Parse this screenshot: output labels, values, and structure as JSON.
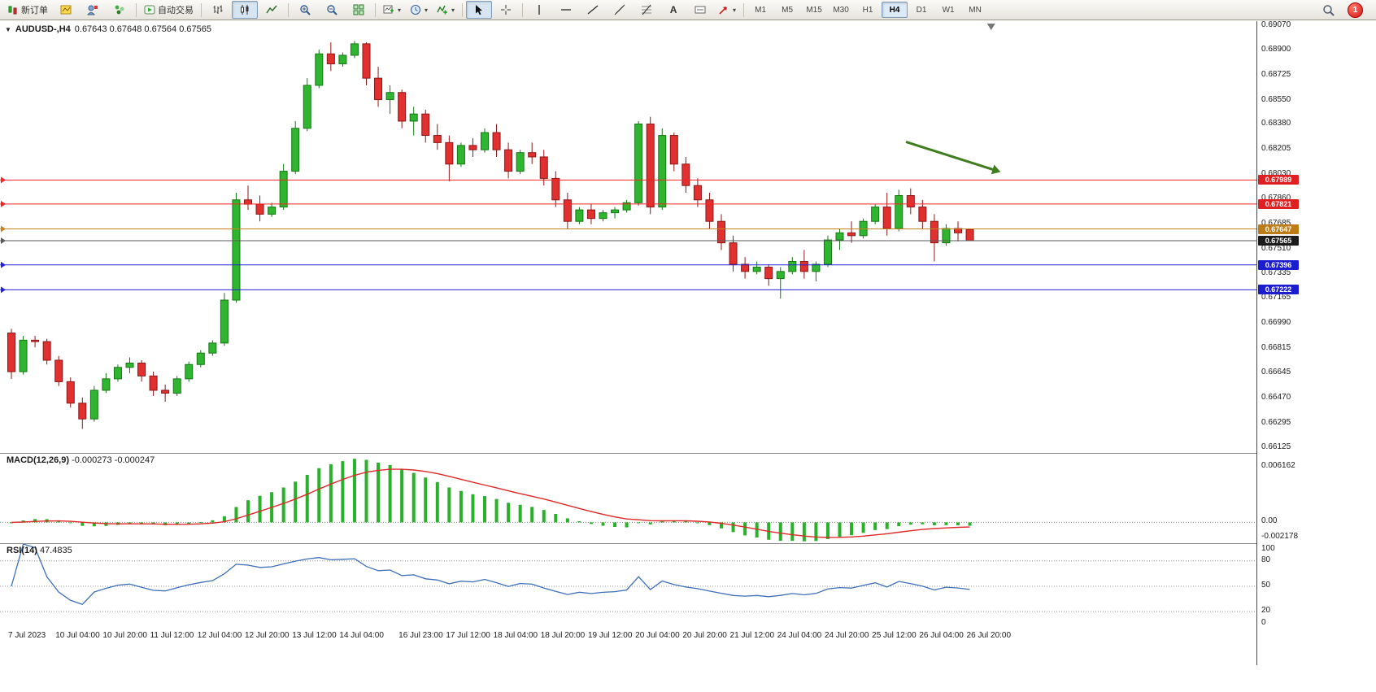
{
  "toolbar": {
    "new_order_label": "新订单",
    "auto_trading_label": "自动交易",
    "text_tool_glyph": "A",
    "timeframes": [
      "M1",
      "M5",
      "M15",
      "M30",
      "H1",
      "H4",
      "D1",
      "W1",
      "MN"
    ],
    "active_timeframe": "H4",
    "notification_count": "1",
    "icon_names": [
      "new-order-icon",
      "charts-grid-icon",
      "profile-icon",
      "navigator-icon",
      "auto-trading-icon",
      "bar-chart-icon",
      "candlestick-icon",
      "line-chart-icon",
      "zoom-in-icon",
      "zoom-out-icon",
      "tile-windows-icon",
      "new-chart-icon",
      "period-clock-icon",
      "indicators-icon",
      "cursor-icon",
      "crosshair-icon",
      "vertical-line-icon",
      "horizontal-line-icon",
      "trendline-icon",
      "channel-icon",
      "fibonacci-icon",
      "text-icon",
      "label-icon",
      "arrows-icon",
      "search-icon"
    ]
  },
  "chart": {
    "symbol_label": "AUDUSD-,H4",
    "ohlc_label": "0.67643 0.67648 0.67564 0.67565",
    "price_scale_labels": [
      "0.69070",
      "0.68900",
      "0.68725",
      "0.68550",
      "0.68380",
      "0.68205",
      "0.68030",
      "0.67860",
      "0.67685",
      "0.67510",
      "0.67335",
      "0.67165",
      "0.66990",
      "0.66815",
      "0.66645",
      "0.66470",
      "0.66295",
      "0.66125"
    ],
    "hlines": [
      {
        "label": "0.67989",
        "price": 0.67989,
        "color": "#ff2020",
        "box_color": "#e02020"
      },
      {
        "label": "0.67821",
        "price": 0.67821,
        "color": "#ff2020",
        "box_color": "#e02020"
      },
      {
        "label": "0.67647",
        "price": 0.67647,
        "color": "#c8831e",
        "box_color": "#bd7c16"
      },
      {
        "label": "0.67565",
        "price": 0.67565,
        "color": "#5a5a5a",
        "box_color": "#1c1c1c"
      },
      {
        "label": "0.67396",
        "price": 0.67396,
        "color": "#2222e0",
        "box_color": "#1d1dd0"
      },
      {
        "label": "0.67222",
        "price": 0.67222,
        "color": "#2222e0",
        "box_color": "#1d1dd0"
      }
    ],
    "colors": {
      "up": "#2fb52f",
      "up_stroke": "#157815",
      "down": "#e03030",
      "down_stroke": "#8e1616"
    }
  },
  "chart_data": {
    "type": "candlestick",
    "symbol": "AUDUSD",
    "timeframe": "H4",
    "ylim": [
      0.66125,
      0.6907
    ],
    "ohlc": [
      [
        0.6692,
        0.6695,
        0.666,
        0.6665
      ],
      [
        0.6665,
        0.669,
        0.6663,
        0.6687
      ],
      [
        0.6687,
        0.669,
        0.6682,
        0.6686
      ],
      [
        0.6686,
        0.6688,
        0.667,
        0.6673
      ],
      [
        0.6673,
        0.6676,
        0.6655,
        0.6658
      ],
      [
        0.6658,
        0.6661,
        0.664,
        0.6643
      ],
      [
        0.6643,
        0.6647,
        0.6625,
        0.6632
      ],
      [
        0.6632,
        0.6655,
        0.663,
        0.6652
      ],
      [
        0.6652,
        0.6664,
        0.665,
        0.666
      ],
      [
        0.666,
        0.667,
        0.6658,
        0.6668
      ],
      [
        0.6668,
        0.6675,
        0.6664,
        0.6671
      ],
      [
        0.6671,
        0.6673,
        0.6658,
        0.6662
      ],
      [
        0.6662,
        0.6665,
        0.6648,
        0.6652
      ],
      [
        0.6652,
        0.6656,
        0.6644,
        0.665
      ],
      [
        0.665,
        0.6662,
        0.6648,
        0.666
      ],
      [
        0.666,
        0.6672,
        0.6658,
        0.667
      ],
      [
        0.667,
        0.668,
        0.6668,
        0.6678
      ],
      [
        0.6678,
        0.6687,
        0.6676,
        0.6685
      ],
      [
        0.6685,
        0.672,
        0.6683,
        0.6715
      ],
      [
        0.6715,
        0.679,
        0.6713,
        0.6785
      ],
      [
        0.6785,
        0.6795,
        0.6778,
        0.6782
      ],
      [
        0.6782,
        0.6788,
        0.677,
        0.6775
      ],
      [
        0.6775,
        0.6783,
        0.6773,
        0.678
      ],
      [
        0.678,
        0.681,
        0.6778,
        0.6805
      ],
      [
        0.6805,
        0.684,
        0.6803,
        0.6835
      ],
      [
        0.6835,
        0.687,
        0.6833,
        0.6865
      ],
      [
        0.6865,
        0.689,
        0.6863,
        0.6887
      ],
      [
        0.6887,
        0.6895,
        0.6875,
        0.688
      ],
      [
        0.688,
        0.6888,
        0.6878,
        0.6886
      ],
      [
        0.6886,
        0.6896,
        0.6884,
        0.6894
      ],
      [
        0.6894,
        0.6895,
        0.6865,
        0.687
      ],
      [
        0.687,
        0.6878,
        0.685,
        0.6855
      ],
      [
        0.6855,
        0.6865,
        0.6845,
        0.686
      ],
      [
        0.686,
        0.6862,
        0.6835,
        0.684
      ],
      [
        0.684,
        0.685,
        0.683,
        0.6845
      ],
      [
        0.6845,
        0.6848,
        0.6825,
        0.683
      ],
      [
        0.683,
        0.6838,
        0.682,
        0.6825
      ],
      [
        0.6825,
        0.683,
        0.6798,
        0.681
      ],
      [
        0.681,
        0.6825,
        0.6808,
        0.6823
      ],
      [
        0.6823,
        0.6828,
        0.6815,
        0.682
      ],
      [
        0.682,
        0.6835,
        0.6818,
        0.6832
      ],
      [
        0.6832,
        0.6838,
        0.6815,
        0.682
      ],
      [
        0.682,
        0.6825,
        0.68,
        0.6805
      ],
      [
        0.6805,
        0.682,
        0.6803,
        0.6818
      ],
      [
        0.6818,
        0.6825,
        0.681,
        0.6815
      ],
      [
        0.6815,
        0.682,
        0.6795,
        0.68
      ],
      [
        0.68,
        0.6805,
        0.678,
        0.6785
      ],
      [
        0.6785,
        0.679,
        0.6765,
        0.677
      ],
      [
        0.677,
        0.678,
        0.6768,
        0.6778
      ],
      [
        0.6778,
        0.6782,
        0.6768,
        0.6772
      ],
      [
        0.6772,
        0.6778,
        0.677,
        0.6776
      ],
      [
        0.6776,
        0.678,
        0.6772,
        0.6778
      ],
      [
        0.6778,
        0.6785,
        0.6776,
        0.6783
      ],
      [
        0.6783,
        0.684,
        0.6781,
        0.6838
      ],
      [
        0.6838,
        0.6843,
        0.6775,
        0.678
      ],
      [
        0.678,
        0.6835,
        0.6778,
        0.683
      ],
      [
        0.683,
        0.6832,
        0.6805,
        0.681
      ],
      [
        0.681,
        0.6815,
        0.679,
        0.6795
      ],
      [
        0.6795,
        0.68,
        0.678,
        0.6785
      ],
      [
        0.6785,
        0.679,
        0.6765,
        0.677
      ],
      [
        0.677,
        0.6775,
        0.675,
        0.6755
      ],
      [
        0.6755,
        0.676,
        0.6735,
        0.674
      ],
      [
        0.674,
        0.6745,
        0.673,
        0.6735
      ],
      [
        0.6735,
        0.6742,
        0.6733,
        0.6738
      ],
      [
        0.6738,
        0.674,
        0.6725,
        0.673
      ],
      [
        0.673,
        0.6738,
        0.6716,
        0.6735
      ],
      [
        0.6735,
        0.6745,
        0.6733,
        0.6742
      ],
      [
        0.6742,
        0.675,
        0.673,
        0.6735
      ],
      [
        0.6735,
        0.6742,
        0.6728,
        0.674
      ],
      [
        0.674,
        0.676,
        0.6738,
        0.6757
      ],
      [
        0.6757,
        0.6765,
        0.675,
        0.6762
      ],
      [
        0.6762,
        0.677,
        0.6755,
        0.676
      ],
      [
        0.676,
        0.6772,
        0.6758,
        0.677
      ],
      [
        0.677,
        0.6782,
        0.6768,
        0.678
      ],
      [
        0.678,
        0.679,
        0.676,
        0.6765
      ],
      [
        0.6765,
        0.6792,
        0.6763,
        0.6788
      ],
      [
        0.6788,
        0.6793,
        0.6775,
        0.678
      ],
      [
        0.678,
        0.6785,
        0.6765,
        0.677
      ],
      [
        0.677,
        0.6775,
        0.6742,
        0.6755
      ],
      [
        0.6755,
        0.6768,
        0.6753,
        0.6765
      ],
      [
        0.6765,
        0.677,
        0.6756,
        0.6762
      ],
      [
        0.67643,
        0.67648,
        0.67564,
        0.67565
      ]
    ],
    "time_labels": [
      {
        "i": 0,
        "t": "7 Jul 2023"
      },
      {
        "i": 4,
        "t": "10 Jul 04:00"
      },
      {
        "i": 8,
        "t": "10 Jul 20:00"
      },
      {
        "i": 12,
        "t": "11 Jul 12:00"
      },
      {
        "i": 16,
        "t": "12 Jul 04:00"
      },
      {
        "i": 20,
        "t": "12 Jul 20:00"
      },
      {
        "i": 24,
        "t": "13 Jul 12:00"
      },
      {
        "i": 28,
        "t": "14 Jul 04:00"
      },
      {
        "i": 33,
        "t": "16 Jul 23:00"
      },
      {
        "i": 37,
        "t": "17 Jul 12:00"
      },
      {
        "i": 41,
        "t": "18 Jul 04:00"
      },
      {
        "i": 45,
        "t": "18 Jul 20:00"
      },
      {
        "i": 49,
        "t": "19 Jul 12:00"
      },
      {
        "i": 53,
        "t": "20 Jul 04:00"
      },
      {
        "i": 57,
        "t": "20 Jul 20:00"
      },
      {
        "i": 61,
        "t": "21 Jul 12:00"
      },
      {
        "i": 65,
        "t": "24 Jul 04:00"
      },
      {
        "i": 69,
        "t": "24 Jul 20:00"
      },
      {
        "i": 73,
        "t": "25 Jul 12:00"
      },
      {
        "i": 77,
        "t": "26 Jul 04:00"
      },
      {
        "i": 81,
        "t": "26 Jul 20:00"
      }
    ],
    "annotation_arrow": {
      "from_index": 75.6,
      "from_price": 0.68255,
      "to_index": 83.6,
      "to_price": 0.68045,
      "color": "#3f7d1f"
    },
    "shift_marker_index": 82.8
  },
  "macd": {
    "label": "MACD(12,26,9)",
    "values_label": "-0.000273 -0.000247",
    "fast": 12,
    "slow": 26,
    "signal": 9,
    "scale_labels": {
      "max": "0.006162",
      "zero": "0.00",
      "min": "-0.002178"
    },
    "colors": {
      "histogram": "#29b129",
      "signal": "#e02828"
    }
  },
  "rsi": {
    "label": "RSI(14)",
    "value_label": "47.4835",
    "period": 14,
    "levels": [
      80,
      50,
      20
    ],
    "scale_top_label": "100",
    "scale_bottom_label": "0",
    "color": "#3c6fb8"
  }
}
